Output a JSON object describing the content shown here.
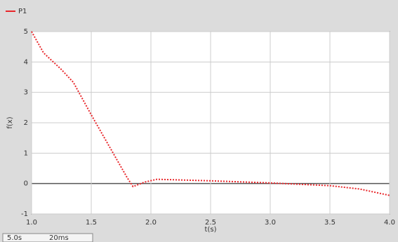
{
  "chart_data": {
    "type": "line",
    "legend_loc": "upper left",
    "ylabel": "f(x)",
    "xlabel": "t(s)",
    "xlim": [
      1.0,
      4.0
    ],
    "xticks": [
      {
        "value": 1.0,
        "label": "1.0"
      },
      {
        "value": 1.5,
        "label": "1.5"
      },
      {
        "value": 2.0,
        "label": "2.0"
      },
      {
        "value": 2.5,
        "label": "2.5"
      },
      {
        "value": 3.0,
        "label": "3.0"
      },
      {
        "value": 3.5,
        "label": "3.5"
      },
      {
        "value": 4.0,
        "label": "4.0"
      }
    ],
    "ylim": [
      -1,
      5
    ],
    "yticks": [
      -1,
      0,
      1,
      2,
      3,
      4,
      5
    ],
    "grid": true,
    "x": [
      1.0,
      1.1,
      1.25,
      1.35,
      1.5,
      1.65,
      1.8,
      1.85,
      1.95,
      2.05,
      2.5,
      3.0,
      3.5,
      3.75,
      4.0
    ],
    "series": [
      {
        "name": "P1",
        "color": "#e8262a",
        "values": [
          5,
          4.3,
          3.75,
          3.33,
          2.26,
          1.23,
          0.2,
          -0.1,
          0.05,
          0.14,
          0.09,
          0.02,
          -0.07,
          -0.18,
          -0.39
        ]
      }
    ],
    "status": [
      "5.0s",
      "20ms"
    ]
  }
}
